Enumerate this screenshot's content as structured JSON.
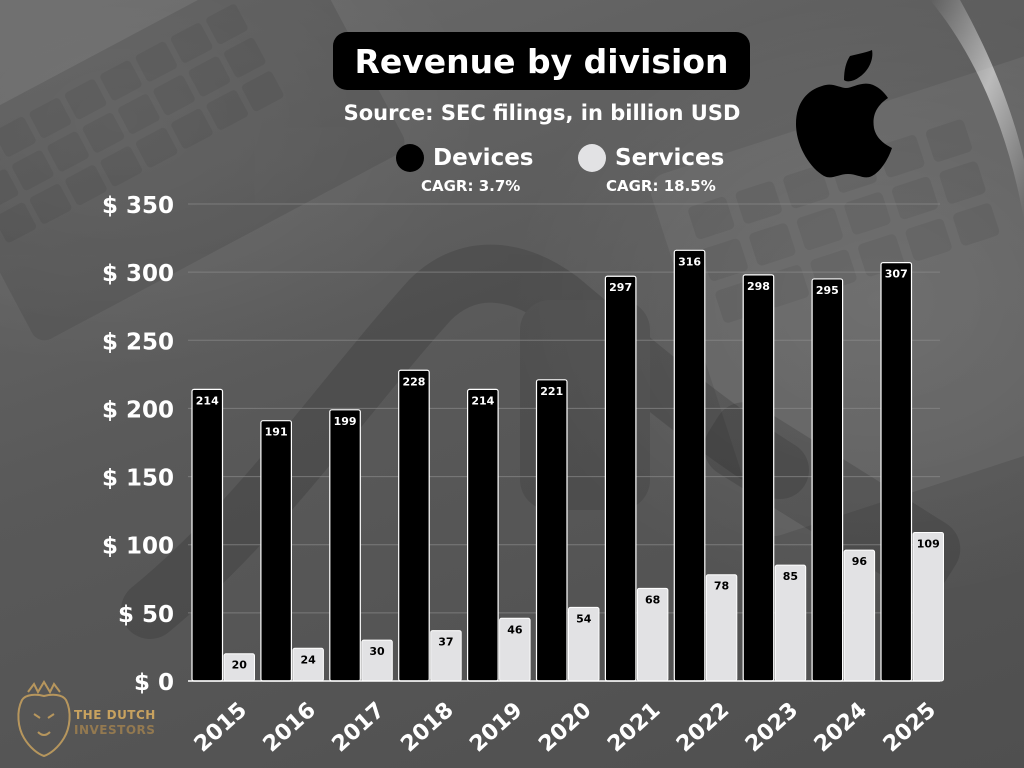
{
  "header": {
    "title": "Revenue by division",
    "subtitle": "Source: SEC filings, in billion USD"
  },
  "legend": [
    {
      "label": "Devices",
      "note": "CAGR: 3.7%",
      "color": "#000000"
    },
    {
      "label": "Services",
      "note": "CAGR: 18.5%",
      "color": "#e2e2e4"
    }
  ],
  "watermark": {
    "line1": "THE DUTCH",
    "line2": "INVESTORS"
  },
  "brand": {
    "logo_icon": "apple-logo-icon",
    "watermark_icon": "lion-crest-icon"
  },
  "colors": {
    "devices": "#000000",
    "services": "#e2e2e4",
    "text": "#ffffff",
    "gridline": "#8a8a8a"
  },
  "chart_data": {
    "type": "bar",
    "categories": [
      "2015",
      "2016",
      "2017",
      "2018",
      "2019",
      "2020",
      "2021",
      "2022",
      "2023",
      "2024",
      "2025"
    ],
    "series": [
      {
        "name": "Devices",
        "values": [
          214,
          191,
          199,
          228,
          214,
          221,
          297,
          316,
          298,
          295,
          307
        ]
      },
      {
        "name": "Services",
        "values": [
          20,
          24,
          30,
          37,
          46,
          54,
          68,
          78,
          85,
          96,
          109
        ]
      }
    ],
    "ylim": [
      0,
      350
    ],
    "yticks": [
      0,
      50,
      100,
      150,
      200,
      250,
      300,
      350
    ],
    "ytick_labels": [
      "$ 0",
      "$ 50",
      "$ 100",
      "$ 150",
      "$ 200",
      "$ 250",
      "$ 300",
      "$ 350"
    ],
    "grid": true,
    "xlabel": "",
    "ylabel": "",
    "legend_position": "top-center"
  }
}
